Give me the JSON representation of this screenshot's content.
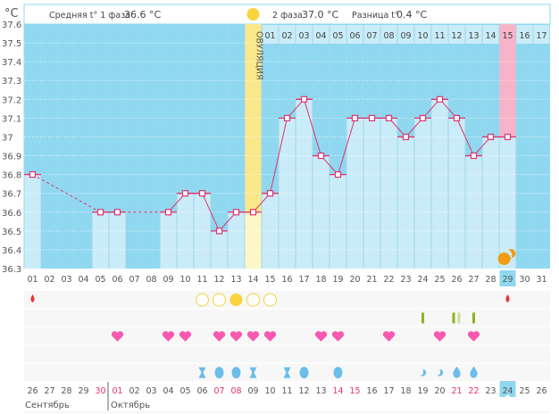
{
  "header": {
    "unit": "°C",
    "phase1_label": "Средняя t° 1 фаза",
    "phase1_value": "36.6 °C",
    "phase2_label": "2 фаза",
    "phase2_value": "37.0 °C",
    "diff_label": "Разница t°",
    "diff_value": "0.4 °C",
    "ovulation_label": "ОВУЛЯЦИЯ"
  },
  "colors": {
    "background": "#8fd8f0",
    "bar": "#c9ecf8",
    "line": "#e0336e",
    "ovulation": "#fbe88a",
    "ovulation_bar": "#fdf6c8",
    "expected_period": "#f9b3c8",
    "today": "#8fd8f0",
    "weekend": "#e0336e"
  },
  "chart_data": {
    "type": "line",
    "ylabel": "°C",
    "ylim": [
      36.3,
      37.6
    ],
    "yticks": [
      "37.6",
      "37.5",
      "37.4",
      "37.3",
      "37.2",
      "37.1",
      "37",
      "36.9",
      "36.8",
      "36.7",
      "36.6",
      "36.5",
      "36.4",
      "36.3"
    ],
    "grid": true,
    "x": [
      "01",
      "02",
      "03",
      "04",
      "05",
      "06",
      "07",
      "08",
      "09",
      "10",
      "11",
      "12",
      "13",
      "14",
      "15",
      "16",
      "17",
      "18",
      "19",
      "20",
      "21",
      "22",
      "23",
      "24",
      "25",
      "26",
      "27",
      "28",
      "29",
      "30",
      "31"
    ],
    "values": [
      36.8,
      null,
      null,
      null,
      36.6,
      36.6,
      null,
      null,
      36.6,
      36.7,
      36.7,
      36.5,
      36.6,
      36.6,
      36.7,
      37.1,
      37.2,
      36.9,
      36.8,
      37.1,
      37.1,
      37.1,
      37.0,
      37.1,
      37.2,
      37.1,
      36.9,
      37.0,
      37.0,
      null,
      null
    ],
    "ovulation_day": 14,
    "phase2_days": [
      "01",
      "02",
      "03",
      "04",
      "05",
      "06",
      "07",
      "08",
      "09",
      "10",
      "11",
      "12",
      "13",
      "14",
      "15",
      "16",
      "17"
    ],
    "expected_period_day": 29,
    "today_day": 29
  },
  "symbols": {
    "period": [
      1,
      29
    ],
    "ovulation_test_negative": [
      11,
      12,
      14,
      15
    ],
    "ovulation_test_positive": [
      13
    ],
    "pregnancy_test": [
      24,
      27
    ],
    "pregnancy_test_two_lines": [
      26
    ],
    "intercourse": [
      6,
      9,
      10,
      12,
      13,
      14,
      15,
      18,
      19,
      22,
      25,
      27
    ],
    "mucus_sticky": [
      11,
      14,
      16
    ],
    "mucus_creamy": [
      12,
      13,
      17,
      19
    ],
    "mucus_watery": [
      24,
      25
    ],
    "mucus_eggwhite": [
      26,
      27
    ]
  },
  "calendar": {
    "dates": [
      "26",
      "27",
      "28",
      "29",
      "30",
      "01",
      "02",
      "03",
      "04",
      "05",
      "06",
      "07",
      "08",
      "09",
      "10",
      "11",
      "12",
      "13",
      "14",
      "15",
      "16",
      "17",
      "18",
      "19",
      "20",
      "21",
      "22",
      "23",
      "24",
      "25",
      "26"
    ],
    "weekend_index": [
      4,
      5,
      11,
      12,
      18,
      19,
      25,
      26
    ],
    "today_index": 28,
    "months": [
      "Сентябрь",
      "Октябрь"
    ]
  }
}
